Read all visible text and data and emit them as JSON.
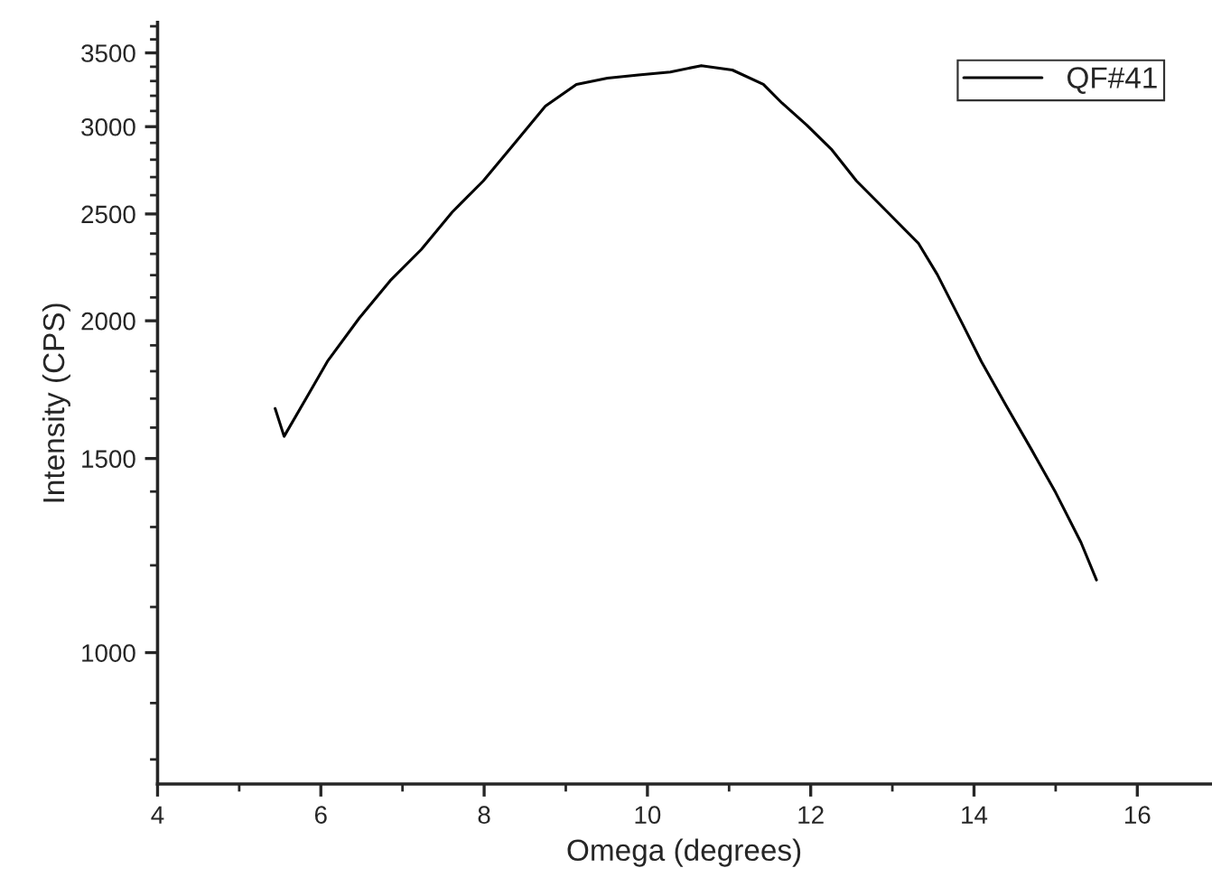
{
  "chart_data": {
    "type": "line",
    "xlabel": "Omega (degrees)",
    "ylabel": "Intensity (CPS)",
    "log": true,
    "grid": false,
    "legend": "top right",
    "marker": "none",
    "line_style": "solid",
    "x": [
      5.44,
      5.55,
      5.86,
      6.08,
      6.47,
      6.85,
      7.23,
      7.61,
      7.99,
      8.37,
      8.75,
      9.13,
      9.51,
      9.89,
      10.28,
      10.66,
      11.04,
      11.42,
      11.65,
      11.95,
      12.26,
      12.56,
      12.94,
      13.32,
      13.55,
      13.86,
      14.09,
      14.39,
      14.7,
      15.0,
      15.31,
      15.5
    ],
    "series": [
      {
        "name": "QF#41",
        "color": "#000000",
        "values": [
          1665,
          1571,
          1721,
          1837,
          2011,
          2175,
          2321,
          2510,
          2679,
          2896,
          3131,
          3277,
          3320,
          3342,
          3363,
          3408,
          3377,
          3277,
          3151,
          3011,
          2858,
          2679,
          2510,
          2351,
          2203,
          1986,
          1837,
          1677,
          1530,
          1397,
          1259,
          1164
        ]
      }
    ],
    "xlim": [
      4,
      16.9
    ],
    "ylim": [
      760,
      3730
    ],
    "xticks": [
      4,
      {
        "value": 5,
        "label": null
      },
      6,
      {
        "value": 7,
        "label": null
      },
      8,
      {
        "value": 9,
        "label": null
      },
      10,
      {
        "value": 11,
        "label": null
      },
      12,
      {
        "value": 13,
        "label": null
      },
      14,
      {
        "value": 15,
        "label": null
      },
      16
    ],
    "yticks": [
      {
        "value": 800,
        "label": null
      },
      {
        "value": 900,
        "label": null
      },
      1000,
      {
        "value": 1100,
        "label": null
      },
      {
        "value": 1200,
        "label": null
      },
      {
        "value": 1300,
        "label": null
      },
      {
        "value": 1400,
        "label": null
      },
      1500,
      {
        "value": 1600,
        "label": null
      },
      {
        "value": 1700,
        "label": null
      },
      {
        "value": 1800,
        "label": null
      },
      {
        "value": 1900,
        "label": null
      },
      2000,
      {
        "value": 2100,
        "label": null
      },
      {
        "value": 2200,
        "label": null
      },
      {
        "value": 2300,
        "label": null
      },
      {
        "value": 2400,
        "label": null
      },
      2500,
      {
        "value": 2600,
        "label": null
      },
      {
        "value": 2700,
        "label": null
      },
      {
        "value": 2800,
        "label": null
      },
      {
        "value": 2900,
        "label": null
      },
      3000,
      {
        "value": 3100,
        "label": null
      },
      {
        "value": 3200,
        "label": null
      },
      {
        "value": 3300,
        "label": null
      },
      {
        "value": 3400,
        "label": null
      },
      3500,
      {
        "value": 3600,
        "label": null
      },
      {
        "value": 3700,
        "label": null
      }
    ]
  }
}
